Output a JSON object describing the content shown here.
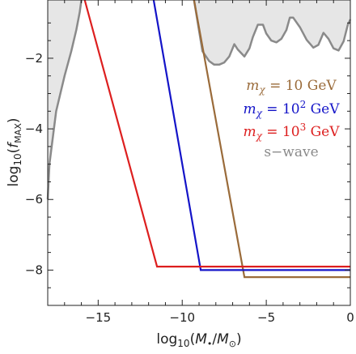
{
  "chart_data": {
    "type": "line",
    "xlabel": "log₁₀(M•/M⊙)",
    "ylabel": "log₁₀(f_MAX)",
    "xlim": [
      -18,
      0
    ],
    "ylim": [
      -9,
      -0.35
    ],
    "x_ticks": [
      -15,
      -10,
      -5,
      0
    ],
    "x_tick_labels": [
      "−15",
      "−10",
      "−5",
      "0"
    ],
    "y_ticks": [
      -2,
      -4,
      -6,
      -8
    ],
    "y_tick_labels": [
      "−2",
      "−4",
      "−6",
      "−8"
    ],
    "grid": false,
    "legend_position": "right",
    "legend": [
      {
        "prefix": "m",
        "sub": "χ",
        "mid": " = 10",
        "sup": "",
        "suffix": " GeV",
        "color": "#9a6b3a"
      },
      {
        "prefix": "m",
        "sub": "χ",
        "mid": " = 10",
        "sup": "2",
        "suffix": " GeV",
        "color": "#1414c8"
      },
      {
        "prefix": "m",
        "sub": "χ",
        "mid": " = 10",
        "sup": "3",
        "suffix": " GeV",
        "color": "#dd1f1f"
      },
      {
        "prefix": "s−wave",
        "sub": "",
        "mid": "",
        "sup": "",
        "suffix": "",
        "color": "#8a8a8a"
      }
    ],
    "series": [
      {
        "color": "#9a6b3a",
        "x": [
          -9.3,
          -6.3,
          0
        ],
        "y": [
          -0.35,
          -8.2,
          -8.2
        ]
      },
      {
        "color": "#1414c8",
        "x": [
          -11.7,
          -8.9,
          0
        ],
        "y": [
          -0.35,
          -8.0,
          -8.0
        ]
      },
      {
        "color": "#dd1f1f",
        "x": [
          -15.8,
          -11.5,
          0
        ],
        "y": [
          -0.35,
          -7.9,
          -7.9
        ]
      }
    ],
    "excluded_regions": [
      {
        "color": "#8a8a8a",
        "x": [
          -18,
          -17.9,
          -17.5,
          -17.0,
          -16.6,
          -16.3,
          -16.1,
          -16.0
        ],
        "y": [
          -6.0,
          -5.0,
          -3.5,
          -2.5,
          -1.8,
          -1.2,
          -0.7,
          -0.35
        ]
      },
      {
        "color": "#8a8a8a",
        "x": [
          -9.3,
          -8.8,
          -8.4,
          -8.1,
          -7.8,
          -7.5,
          -7.2,
          -6.9,
          -6.7,
          -6.3,
          -6.0,
          -5.8,
          -5.5,
          -5.2,
          -5.0,
          -4.7,
          -4.4,
          -4.1,
          -3.8,
          -3.6,
          -3.4,
          -3.0,
          -2.6,
          -2.2,
          -1.9,
          -1.6,
          -1.3,
          -1.0,
          -0.7,
          -0.4,
          -0.15,
          0
        ],
        "y": [
          -0.35,
          -1.8,
          -2.08,
          -2.18,
          -2.18,
          -2.12,
          -1.95,
          -1.6,
          -1.75,
          -1.95,
          -1.72,
          -1.4,
          -1.05,
          -1.05,
          -1.3,
          -1.5,
          -1.55,
          -1.45,
          -1.2,
          -0.85,
          -0.85,
          -1.12,
          -1.48,
          -1.7,
          -1.62,
          -1.28,
          -1.45,
          -1.72,
          -1.78,
          -1.52,
          -1.05,
          -0.9
        ]
      }
    ]
  }
}
